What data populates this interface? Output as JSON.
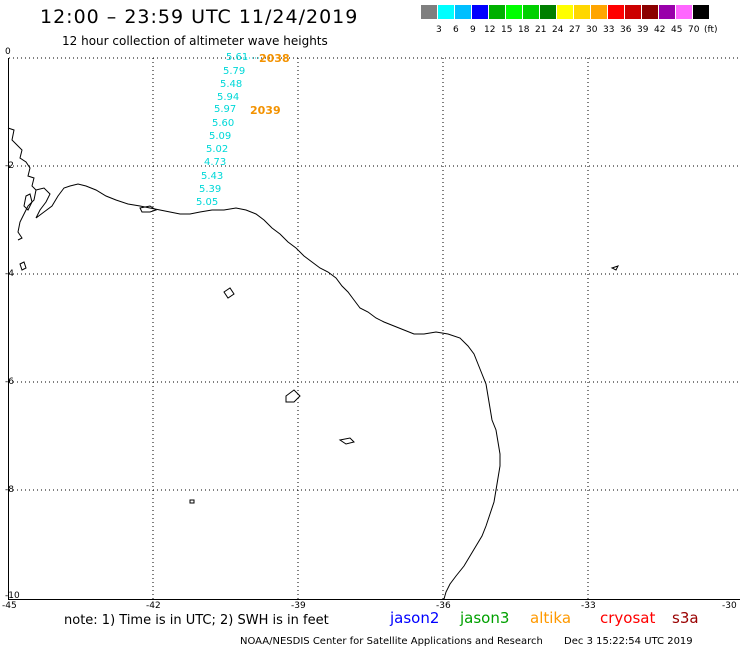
{
  "header": {
    "title": "12:00 – 23:59 UTC 11/24/2019",
    "subtitle": "12 hour collection of altimeter wave heights"
  },
  "legend": {
    "swatches": [
      {
        "color": "#7f7f7f",
        "label": ""
      },
      {
        "color": "#00ffff",
        "label": "3"
      },
      {
        "color": "#00bfff",
        "label": "6"
      },
      {
        "color": "#0000ff",
        "label": "9"
      },
      {
        "color": "#00b000",
        "label": "12"
      },
      {
        "color": "#00ff00",
        "label": "15"
      },
      {
        "color": "#00d000",
        "label": "18"
      },
      {
        "color": "#008000",
        "label": "21"
      },
      {
        "color": "#ffff00",
        "label": "24"
      },
      {
        "color": "#ffd700",
        "label": "27"
      },
      {
        "color": "#ffa500",
        "label": "30"
      },
      {
        "color": "#ff0000",
        "label": "33"
      },
      {
        "color": "#cc0000",
        "label": "36"
      },
      {
        "color": "#8b0000",
        "label": "39"
      },
      {
        "color": "#9900aa",
        "label": "42"
      },
      {
        "color": "#ff66ff",
        "label": "45"
      },
      {
        "color": "#000000",
        "label": "70"
      }
    ],
    "unit": "(ft)"
  },
  "axes": {
    "x_ticks": [
      "-45",
      "-42",
      "-39",
      "-36",
      "-33",
      "-30"
    ],
    "y_ticks": [
      "0",
      "-2",
      "-4",
      "-6",
      "-8",
      "-10"
    ]
  },
  "track": {
    "swh_values": [
      "5.61",
      "5.79",
      "5.48",
      "5.94",
      "5.97",
      "5.60",
      "5.09",
      "5.02",
      "4.73",
      "5.43",
      "5.39",
      "5.05"
    ],
    "times": [
      "2038",
      "2039"
    ]
  },
  "notes": {
    "text": "note: 1) Time is in UTC; 2) SWH is in feet"
  },
  "satellites": [
    {
      "name": "jason2",
      "color": "#0000ff"
    },
    {
      "name": "jason3",
      "color": "#00a000"
    },
    {
      "name": "altika",
      "color": "#ff9900"
    },
    {
      "name": "cryosat",
      "color": "#ff0000"
    },
    {
      "name": "s3a",
      "color": "#990000"
    }
  ],
  "footer": {
    "credit": "NOAA/NESDIS Center for Satellite Applications and Research",
    "timestamp": "Dec  3 15:22:54 UTC 2019"
  }
}
